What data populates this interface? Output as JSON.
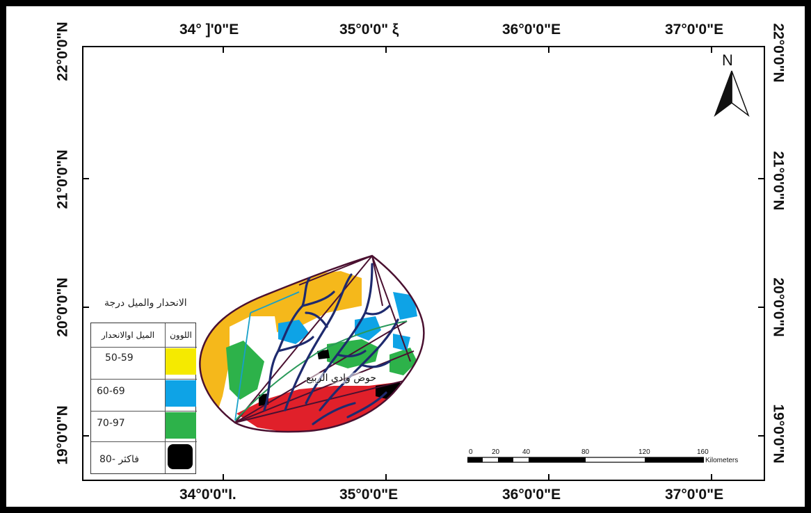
{
  "map": {
    "lon_labels_top": [
      "34° ]'0\"E",
      "35°0'0\" ξ",
      "36°0'0\"E",
      "37°0'0\"E"
    ],
    "lon_labels_bottom": [
      "34°0'0\"I.",
      "35°0'0\"E",
      "36°0'0\"E",
      "37°0'0\"E"
    ],
    "lat_labels_left": [
      "22°0'0\"N",
      "21°0'0\"N",
      "20°0'0\"N",
      "19°0'0\"N"
    ],
    "lat_labels_right": [
      "22°0'0\"N",
      "21°0'0\"N",
      "20°0'0\"N",
      "19°0'0\"N"
    ],
    "basin_label": "حوض وادي الربيع",
    "north_label": "N"
  },
  "legend": {
    "title": "الانحدار والميل درجة",
    "header_color": "اللوون",
    "header_slope": "الميل اوالانحدار",
    "classes": [
      {
        "range": "50-59",
        "color": "#f5ea00"
      },
      {
        "range": "60-69",
        "color": "#0ea3e6"
      },
      {
        "range": "70-97",
        "color": "#2db24a"
      },
      {
        "range": "فاكثر -80",
        "color": "#000000"
      }
    ]
  },
  "scalebar": {
    "ticks": [
      "0",
      "20",
      "40",
      "80",
      "120",
      "160"
    ],
    "unit": "Kilometers"
  },
  "colors": {
    "orange": "#f5b81b",
    "red": "#e0202a",
    "river": "#1e2a6e",
    "outline": "#4a1030",
    "green_line": "#2a9a5a",
    "cyan_line": "#18a0c8"
  }
}
